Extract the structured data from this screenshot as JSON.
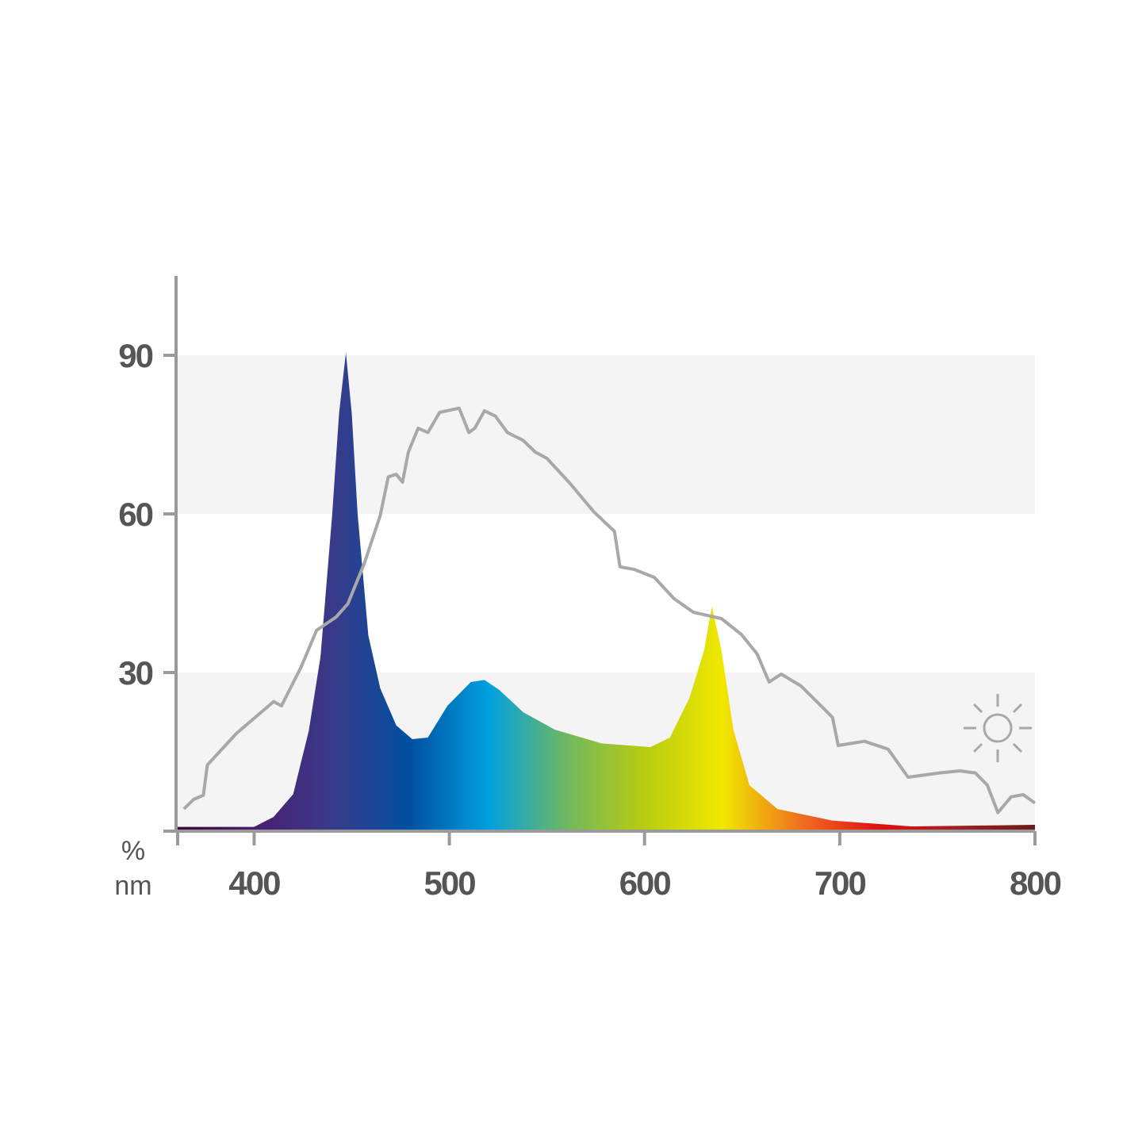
{
  "chart_data": {
    "type": "spectrum",
    "x_label": "nm",
    "y_label": "%",
    "xlim": [
      360,
      800
    ],
    "ylim": [
      0,
      105
    ],
    "xticks": [
      400,
      500,
      600,
      700,
      800
    ],
    "yticks": [
      30,
      60,
      90
    ],
    "band_color": "#f4f4f4",
    "axis_color": "#9a9a9a",
    "tick_label_color": "#555555",
    "series": [
      {
        "kind": "area",
        "colors": [
          "#3a0a3a",
          "#4a1e6e",
          "#3a3a8a",
          "#0050a0",
          "#00a0e0",
          "#70b860",
          "#b8cc10",
          "#f0e800",
          "#f07020",
          "#e01010",
          "#a02020",
          "#6a1a1a"
        ],
        "x": [
          360,
          400,
          410,
          420,
          428,
          434,
          440,
          443.5,
          447,
          450,
          453,
          458.5,
          464.6,
          472.8,
          481,
          489,
          499,
          511,
          518,
          525.6,
          537.8,
          554,
          578,
          603,
          613,
          623,
          630.5,
          634.5,
          639.4,
          645.5,
          653.7,
          668,
          696,
          737,
          800
        ],
        "values": [
          0.8,
          0.8,
          2.7,
          7,
          19,
          33,
          60,
          79,
          90.5,
          79,
          60,
          37,
          27,
          20,
          17.4,
          17.7,
          23.7,
          28.2,
          28.6,
          26.7,
          22.5,
          19.2,
          16.6,
          15.9,
          17.7,
          25.2,
          34.2,
          42.5,
          34.2,
          19.2,
          8.7,
          4.2,
          2,
          0.9,
          1.2
        ]
      },
      {
        "kind": "line",
        "color": "#a8a8a8",
        "x": [
          364,
          369,
          374,
          376,
          391,
          410,
          414,
          424,
          432,
          442,
          448,
          456.5,
          464.6,
          468.7,
          472.8,
          476,
          479,
          484,
          489,
          495,
          505,
          510,
          513,
          518,
          523.6,
          529.7,
          537.8,
          544,
          550,
          562,
          574,
          584.6,
          587.4,
          594.7,
          605,
          615,
          625,
          639.4,
          649.6,
          657.7,
          663.8,
          670,
          680,
          692.3,
          696.3,
          699.2,
          712.6,
          724.8,
          735,
          751,
          761.4,
          769.5,
          775.6,
          781,
          787.8,
          794,
          800
        ],
        "values": [
          4.2,
          6,
          6.8,
          12.5,
          18.5,
          24.5,
          23.7,
          31,
          38,
          40.5,
          43,
          50.7,
          59.7,
          67,
          67.5,
          66,
          71.7,
          76.2,
          75.4,
          79.2,
          80,
          75.4,
          76.2,
          79.5,
          78.5,
          75.4,
          73.9,
          71.7,
          70.5,
          65.7,
          60.4,
          56.7,
          50,
          49.5,
          48,
          44,
          41.4,
          40.2,
          37.2,
          33.5,
          28.2,
          29.7,
          27.5,
          23,
          21.5,
          16.2,
          17,
          15.5,
          10.2,
          11,
          11.4,
          11,
          8.7,
          3.5,
          6.5,
          6.9,
          5.3
        ]
      }
    ]
  }
}
